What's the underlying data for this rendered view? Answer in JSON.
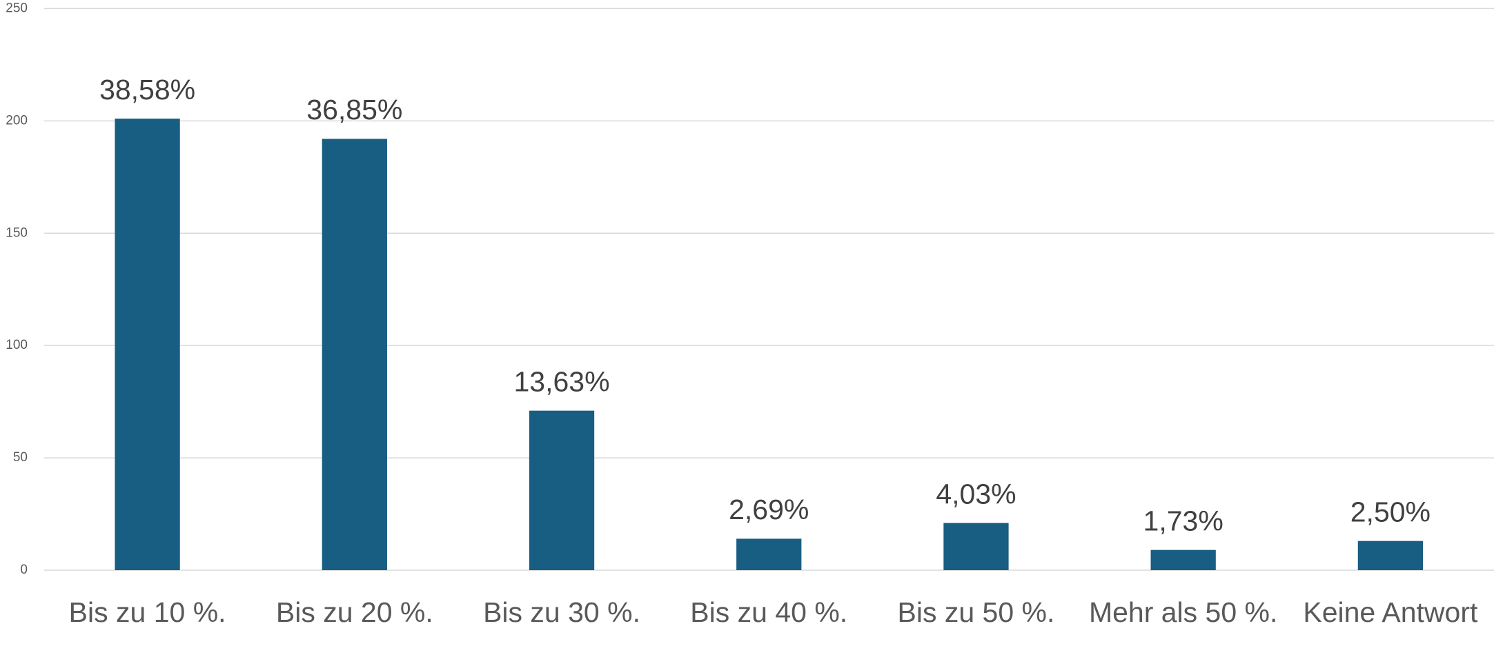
{
  "chart_data": {
    "type": "bar",
    "categories": [
      "Bis zu 10 %.",
      "Bis zu 20 %.",
      "Bis zu 30 %.",
      "Bis zu 40 %.",
      "Bis zu 50 %.",
      "Mehr als 50 %.",
      "Keine Antwort"
    ],
    "values": [
      201,
      192,
      71,
      14,
      21,
      9,
      13
    ],
    "data_labels": [
      "38,58%",
      "36,85%",
      "13,63%",
      "2,69%",
      "4,03%",
      "1,73%",
      "2,50%"
    ],
    "color": "#175e82",
    "ylim": [
      0,
      250
    ],
    "yticks": [
      0,
      50,
      100,
      150,
      200,
      250
    ],
    "grid": true
  }
}
